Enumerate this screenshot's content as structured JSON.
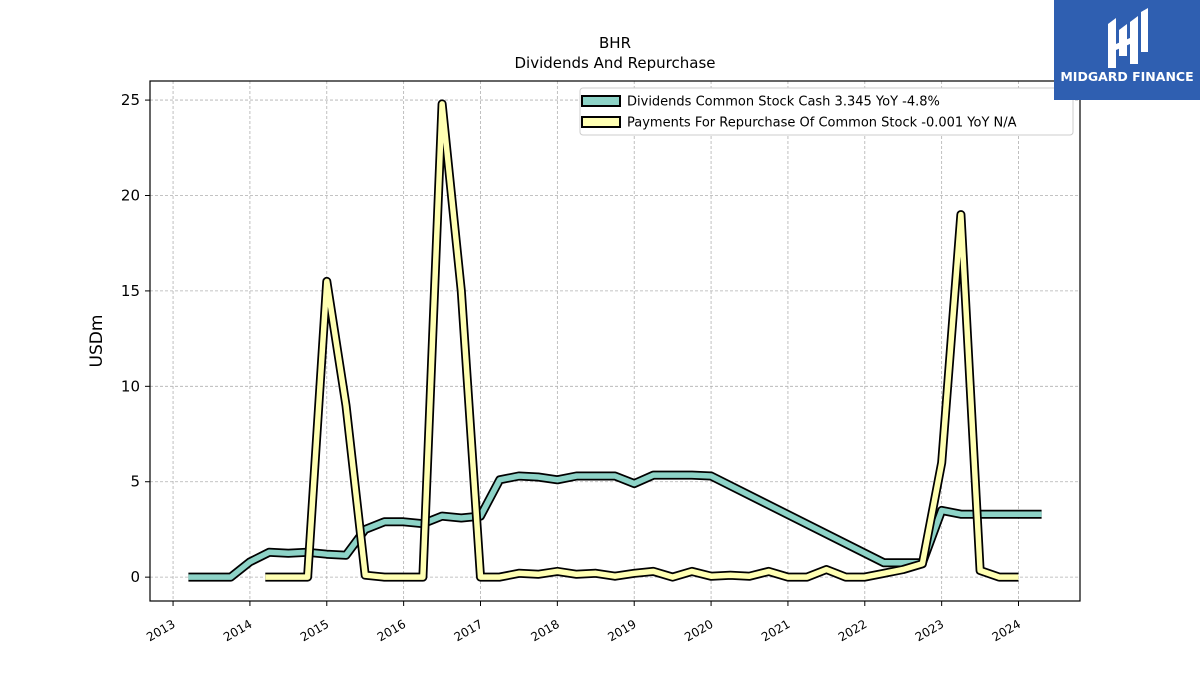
{
  "brand": {
    "name": "MIDGARD FINANCE",
    "bg_color": "#2f5fb1"
  },
  "chart_data": {
    "type": "line",
    "title": "BHR",
    "subtitle": "Dividends And Repurchase",
    "xlabel": "",
    "ylabel": "USDm",
    "x_tick_labels": [
      "2013",
      "2014",
      "2015",
      "2016",
      "2017",
      "2018",
      "2019",
      "2020",
      "2021",
      "2022",
      "2023",
      "2024"
    ],
    "y_tick_labels": [
      "0",
      "5",
      "10",
      "15",
      "20",
      "25"
    ],
    "xlim": [
      2012.7,
      2024.8
    ],
    "ylim": [
      -1.25,
      26
    ],
    "grid": true,
    "legend_position": "top-right",
    "series": [
      {
        "name": "Dividends Common Stock Cash  3.345 YoY -4.8%",
        "color": "#8dd3c7",
        "points": [
          [
            2013.2,
            0.0
          ],
          [
            2013.5,
            0.0
          ],
          [
            2013.75,
            0.0
          ],
          [
            2014.0,
            0.8
          ],
          [
            2014.25,
            1.3
          ],
          [
            2014.5,
            1.25
          ],
          [
            2014.75,
            1.3
          ],
          [
            2015.0,
            1.2
          ],
          [
            2015.25,
            1.15
          ],
          [
            2015.5,
            2.5
          ],
          [
            2015.75,
            2.9
          ],
          [
            2016.0,
            2.9
          ],
          [
            2016.25,
            2.8
          ],
          [
            2016.5,
            3.2
          ],
          [
            2016.75,
            3.1
          ],
          [
            2017.0,
            3.2
          ],
          [
            2017.25,
            5.1
          ],
          [
            2017.5,
            5.3
          ],
          [
            2017.75,
            5.25
          ],
          [
            2018.0,
            5.1
          ],
          [
            2018.25,
            5.3
          ],
          [
            2018.5,
            5.3
          ],
          [
            2018.75,
            5.3
          ],
          [
            2019.0,
            4.9
          ],
          [
            2019.25,
            5.35
          ],
          [
            2019.5,
            5.35
          ],
          [
            2019.75,
            5.35
          ],
          [
            2020.0,
            5.3
          ],
          [
            2022.25,
            0.75
          ],
          [
            2022.75,
            0.75
          ],
          [
            2023.0,
            3.5
          ],
          [
            2023.25,
            3.3
          ],
          [
            2023.5,
            3.3
          ],
          [
            2024.0,
            3.3
          ],
          [
            2024.3,
            3.3
          ]
        ]
      },
      {
        "name": "Payments For Repurchase Of Common Stock  -0.001 YoY N/A",
        "color": "#ffffb3",
        "points": [
          [
            2014.2,
            0.0
          ],
          [
            2014.45,
            0.0
          ],
          [
            2014.75,
            0.0
          ],
          [
            2015.0,
            15.5
          ],
          [
            2015.25,
            9.0
          ],
          [
            2015.5,
            0.1
          ],
          [
            2015.75,
            0.0
          ],
          [
            2016.0,
            0.0
          ],
          [
            2016.25,
            0.0
          ],
          [
            2016.5,
            24.8
          ],
          [
            2016.75,
            15.0
          ],
          [
            2017.0,
            0.0
          ],
          [
            2017.25,
            0.0
          ],
          [
            2017.5,
            0.2
          ],
          [
            2017.75,
            0.15
          ],
          [
            2018.0,
            0.3
          ],
          [
            2018.25,
            0.15
          ],
          [
            2018.5,
            0.2
          ],
          [
            2018.75,
            0.05
          ],
          [
            2019.0,
            0.2
          ],
          [
            2019.25,
            0.3
          ],
          [
            2019.5,
            0.0
          ],
          [
            2019.75,
            0.3
          ],
          [
            2020.0,
            0.05
          ],
          [
            2020.25,
            0.1
          ],
          [
            2020.5,
            0.05
          ],
          [
            2020.75,
            0.3
          ],
          [
            2021.0,
            0.0
          ],
          [
            2021.25,
            0.0
          ],
          [
            2021.5,
            0.4
          ],
          [
            2021.75,
            0.0
          ],
          [
            2022.0,
            0.0
          ],
          [
            2022.25,
            0.2
          ],
          [
            2022.5,
            0.4
          ],
          [
            2022.75,
            0.7
          ],
          [
            2023.0,
            6.0
          ],
          [
            2023.25,
            19.0
          ],
          [
            2023.5,
            0.35
          ],
          [
            2023.75,
            0.0
          ],
          [
            2024.0,
            0.0
          ]
        ]
      }
    ]
  }
}
